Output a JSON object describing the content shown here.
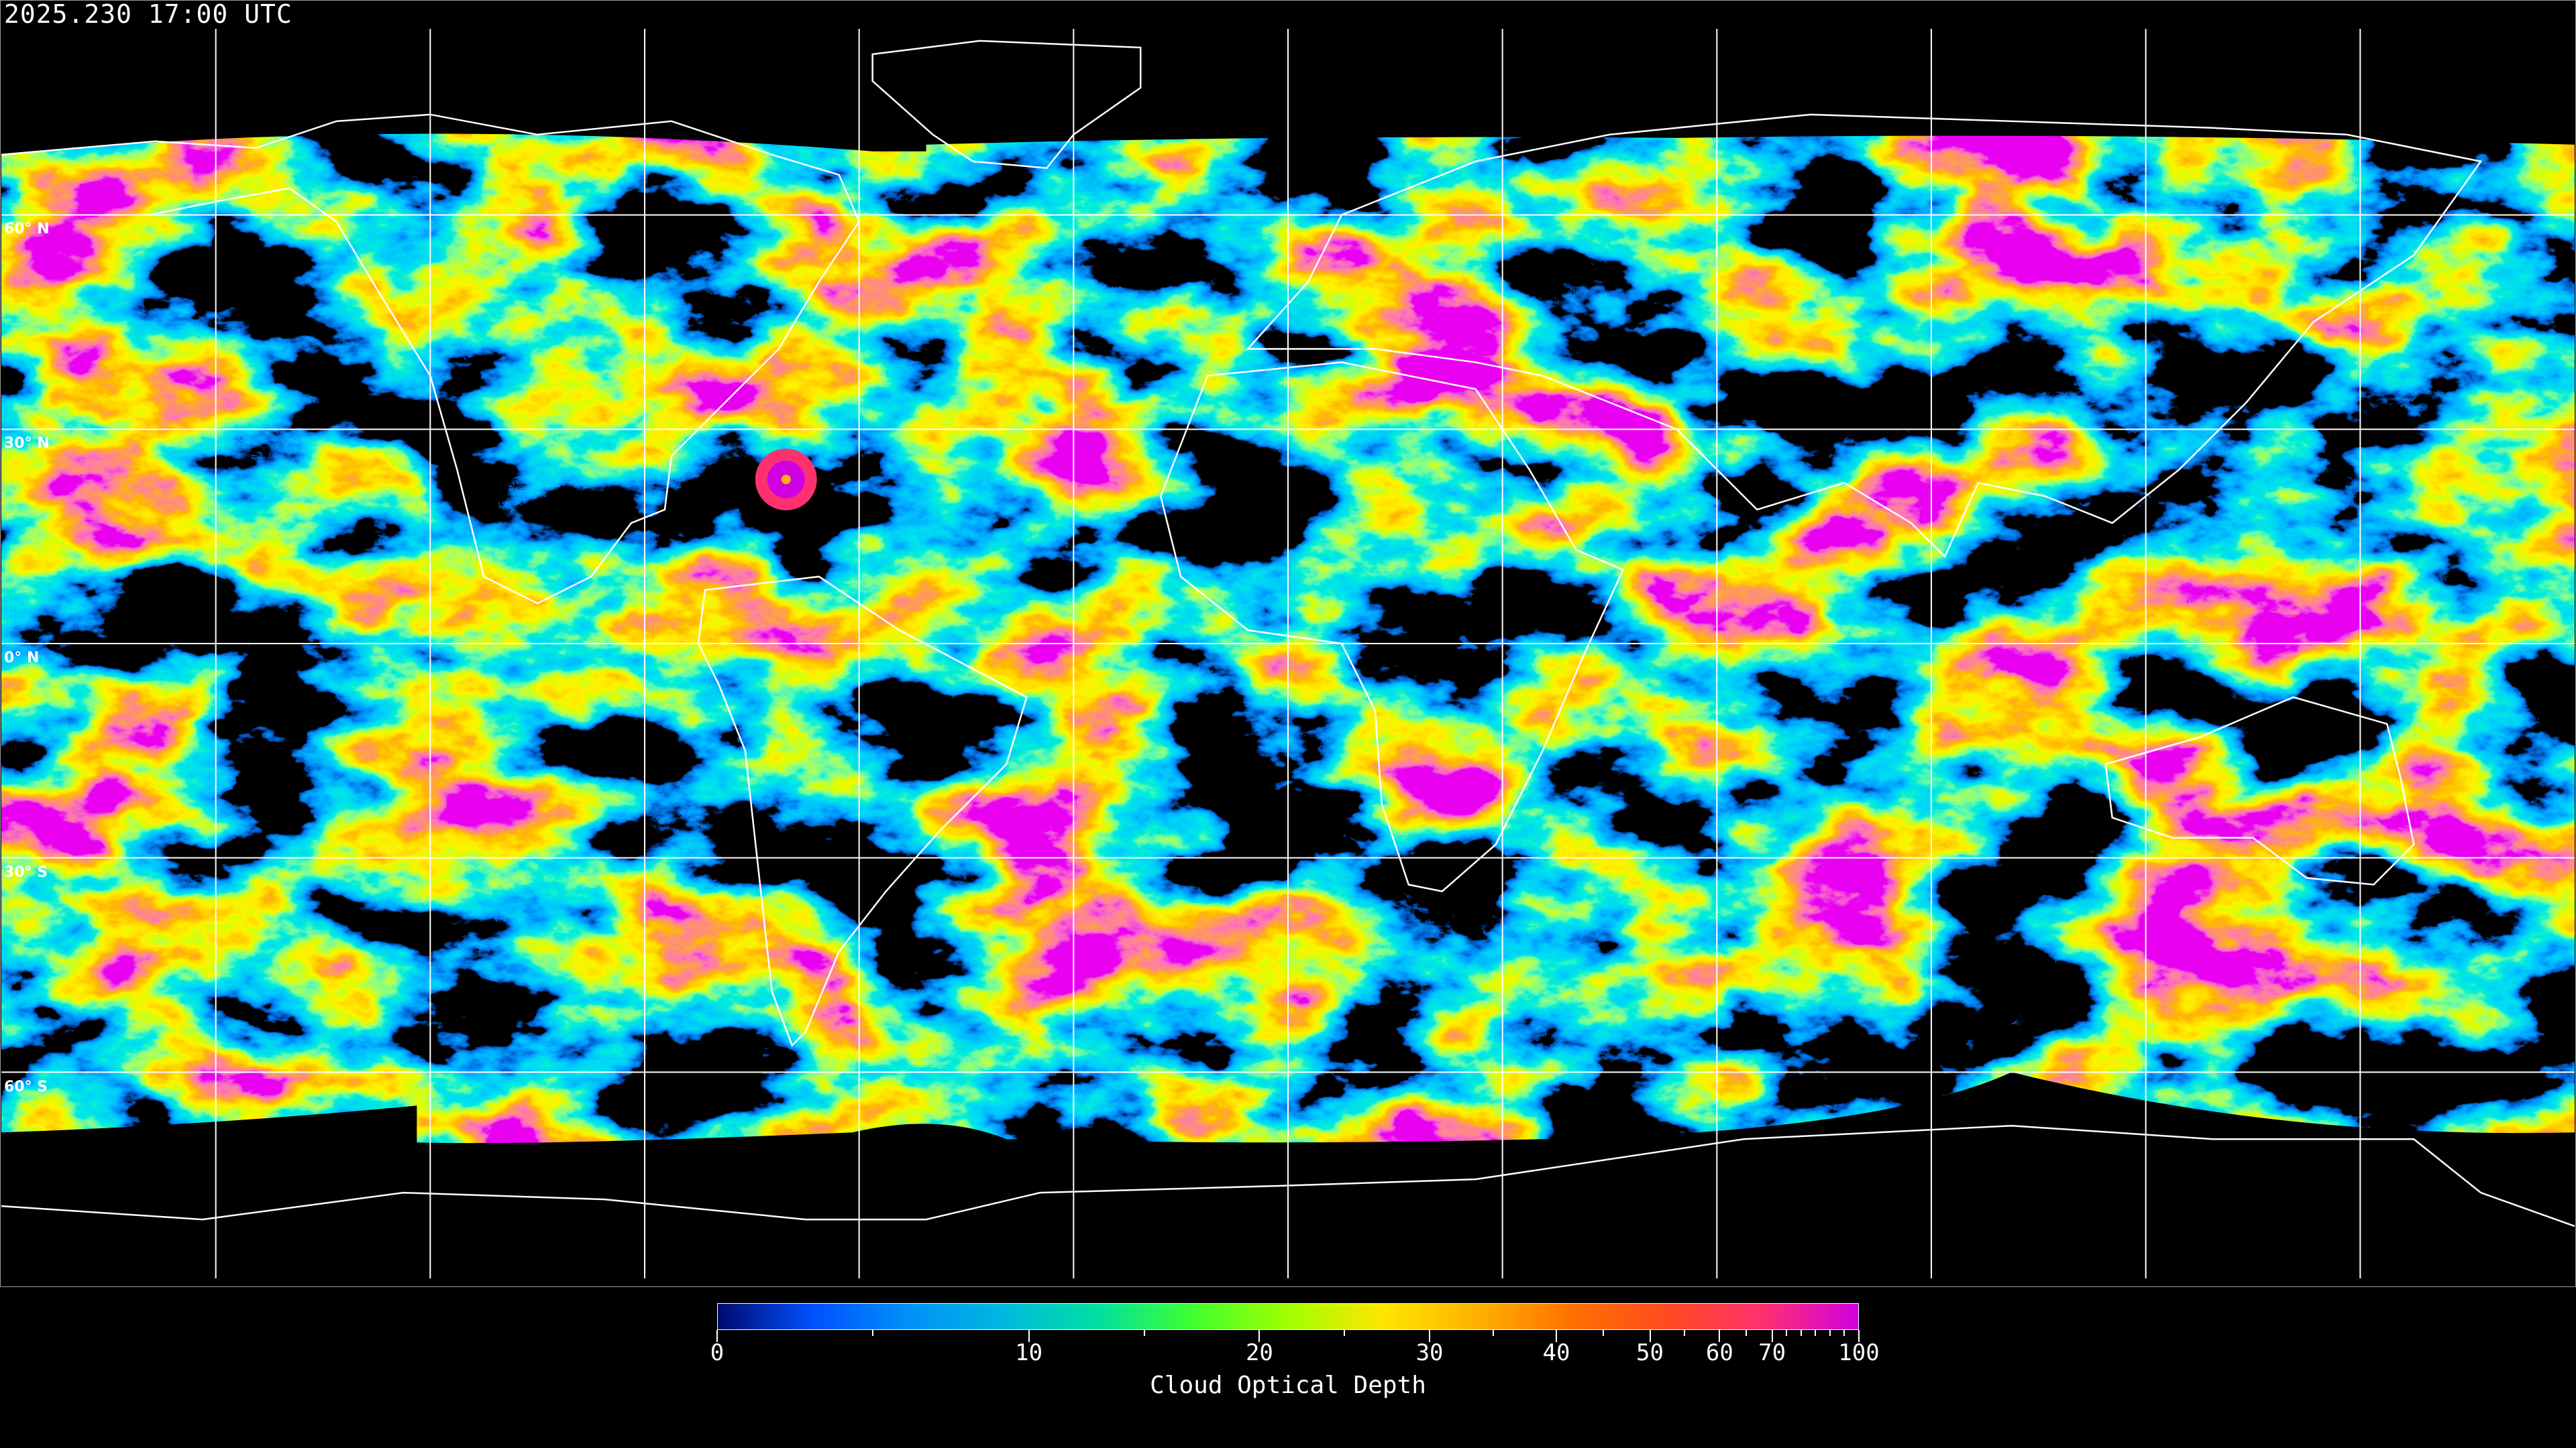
{
  "header": {
    "timestamp": "2025.230 17:00 UTC"
  },
  "map": {
    "projection": "equirectangular",
    "graticule_spacing_deg": 30,
    "latitude_labels": [
      "60° N",
      "30° N",
      "0° N",
      "30° S",
      "60° S"
    ],
    "ocean_color": "#000000",
    "grid_color": "#ffffff",
    "coastline_color": "#ffffff"
  },
  "colorbar": {
    "title": "Cloud Optical Depth",
    "min": 0,
    "max": 100,
    "tick_labels": [
      "0",
      "10",
      "20",
      "30",
      "40",
      "50",
      "60",
      "70",
      "100"
    ],
    "minor_ticks": [
      5,
      15,
      25,
      35,
      45,
      55,
      65,
      75,
      80,
      85,
      90,
      95
    ],
    "colors": [
      "#000a6e",
      "#0050ff",
      "#0090f8",
      "#00b8e0",
      "#00e0a0",
      "#40ff30",
      "#a0ff00",
      "#ffe600",
      "#ffb000",
      "#ff7000",
      "#ff4a20",
      "#ff3070",
      "#d000e0"
    ]
  }
}
